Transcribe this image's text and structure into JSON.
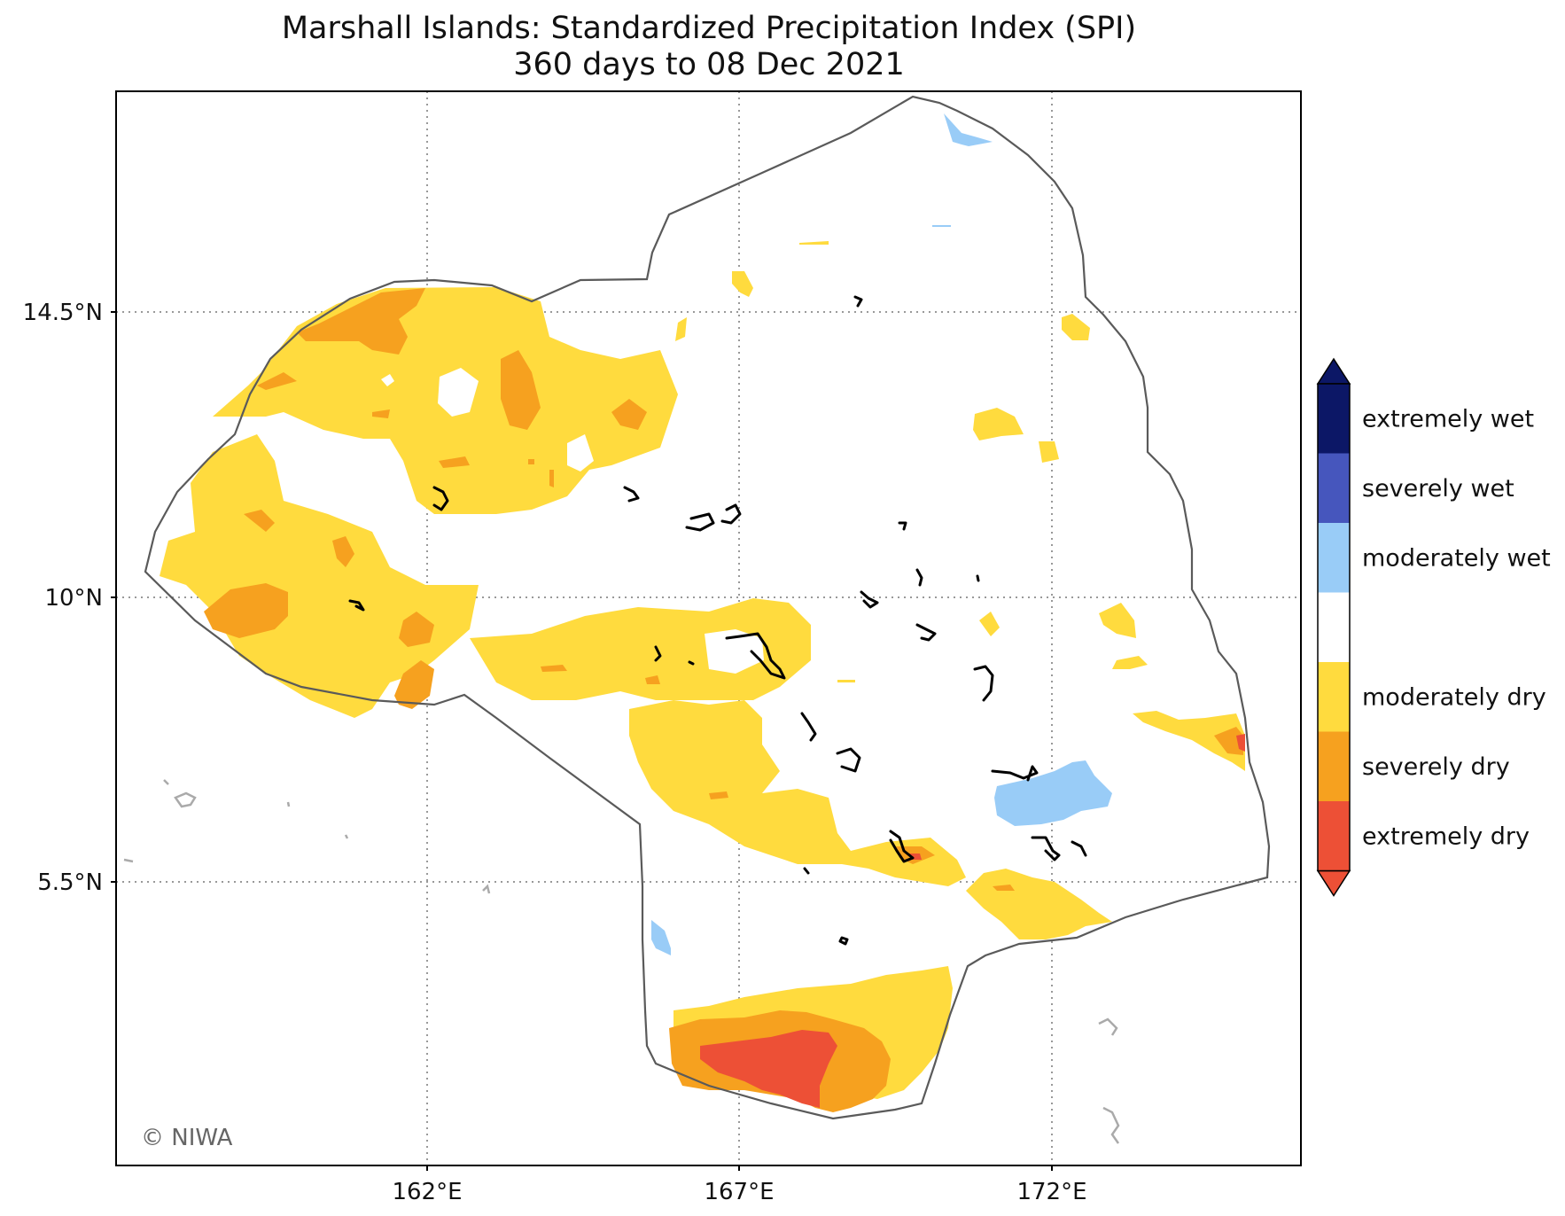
{
  "title": {
    "line1": "Marshall Islands: Standardized Precipitation Index (SPI)",
    "line2": "360 days to 08 Dec 2021"
  },
  "axes": {
    "lat_labels": [
      "14.5°N",
      "10°N",
      "5.5°N"
    ],
    "lon_labels": [
      "162°E",
      "167°E",
      "172°E"
    ],
    "lat_range": [
      0.9,
      17.8
    ],
    "lon_range": [
      157.0,
      176.0
    ],
    "grid": "dotted"
  },
  "legend": {
    "placement": "right",
    "extend": "both",
    "categories": [
      {
        "label": "extremely wet",
        "color": "#0c1766"
      },
      {
        "label": "severely wet",
        "color": "#4656bd"
      },
      {
        "label": "moderately wet",
        "color": "#99ccf7"
      },
      {
        "label": "",
        "color": "#ffffff"
      },
      {
        "label": "moderately dry",
        "color": "#ffdb3e"
      },
      {
        "label": "severely dry",
        "color": "#f6a11f"
      },
      {
        "label": "extremely dry",
        "color": "#ed5036"
      }
    ]
  },
  "credit": "© NIWA",
  "colors": {
    "boundary": "#5a5a5a",
    "grid": "#999999",
    "islands": "#000000",
    "outside_islands": "#aaaaaa"
  }
}
